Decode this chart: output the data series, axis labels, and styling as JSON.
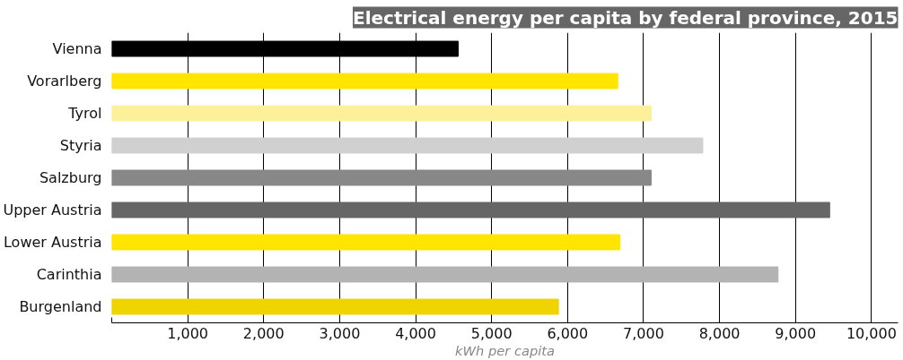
{
  "chart_data": {
    "type": "bar",
    "orientation": "horizontal",
    "title": "Electrical energy per capita by federal province, 2015",
    "xlabel": "kWh per capita",
    "categories": [
      "Vienna",
      "Vorarlberg",
      "Tyrol",
      "Styria",
      "Salzburg",
      "Upper Austria",
      "Lower Austria",
      "Carinthia",
      "Burgenland"
    ],
    "values": [
      4560,
      6660,
      7100,
      7780,
      7100,
      9450,
      6690,
      8770,
      5880
    ],
    "colors": [
      "#000000",
      "#ffe500",
      "#fdf09a",
      "#d0d0d0",
      "#888888",
      "#666666",
      "#ffe500",
      "#b3b3b3",
      "#f0d400"
    ],
    "xlim": [
      0,
      10350
    ],
    "xticks": [
      {
        "value": 0,
        "label": null
      },
      {
        "value": 1000,
        "label": "1,000"
      },
      {
        "value": 2000,
        "label": "2,000"
      },
      {
        "value": 3000,
        "label": "3,000"
      },
      {
        "value": 4000,
        "label": "4,000"
      },
      {
        "value": 5000,
        "label": "5,000"
      },
      {
        "value": 6000,
        "label": "6,000"
      },
      {
        "value": 7000,
        "label": "7,000"
      },
      {
        "value": 8000,
        "label": "8,000"
      },
      {
        "value": 9000,
        "label": "9,000"
      },
      {
        "value": 10000,
        "label": "10,000"
      }
    ],
    "grid": "x"
  }
}
